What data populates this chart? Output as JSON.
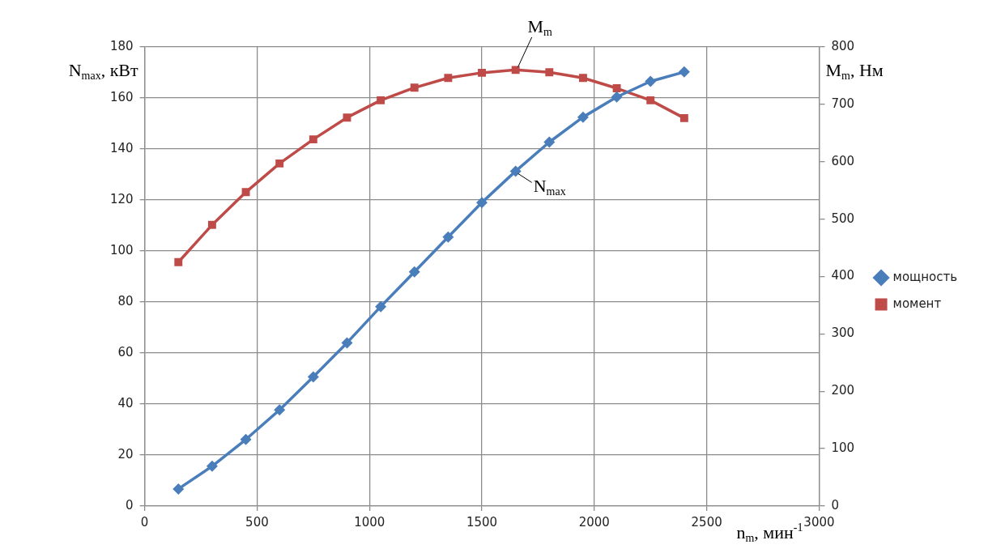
{
  "chart_data": {
    "type": "line",
    "xlabel": "n$_{m}$, мин$^{-1}$",
    "ylabel": "N$_{max}$, кВт",
    "y2label": "M$_{m}$, Нм",
    "x": [
      150,
      300,
      450,
      600,
      750,
      900,
      1050,
      1200,
      1350,
      1500,
      1650,
      1800,
      1950,
      2100,
      2250,
      2400
    ],
    "series": [
      {
        "name": "мощность",
        "color": "#4a7ebb",
        "marker": "diamond",
        "values": [
          6.7,
          15.6,
          26.1,
          37.7,
          50.6,
          64,
          78.2,
          91.8,
          105.5,
          119,
          131.3,
          142.7,
          152.5,
          160.4,
          166.5,
          170.2
        ]
      },
      {
        "name": "момент",
        "color": "#be4b48",
        "marker": "square",
        "axis": "y2",
        "values": [
          425,
          490,
          547,
          597,
          639,
          677,
          707,
          729,
          746,
          755,
          760,
          756,
          746,
          728,
          707,
          676
        ]
      }
    ],
    "xlim": [
      0,
      3000
    ],
    "xticks": [
      0,
      500,
      1000,
      1500,
      2000,
      2500,
      3000
    ],
    "ylim": [
      0,
      180
    ],
    "yticks": [
      0,
      20,
      40,
      60,
      80,
      100,
      120,
      140,
      160,
      180
    ],
    "y2lim": [
      0,
      800
    ],
    "y2ticks": [
      0,
      100,
      200,
      300,
      400,
      500,
      600,
      700,
      800
    ],
    "grid": true,
    "legend": "right",
    "line_style": "solid",
    "annotations": [
      {
        "text": "M$_{m}$",
        "x": 1650,
        "y": 170.9
      },
      {
        "text": "N$_{max}$",
        "x": 1650,
        "y": 131.3
      }
    ]
  }
}
